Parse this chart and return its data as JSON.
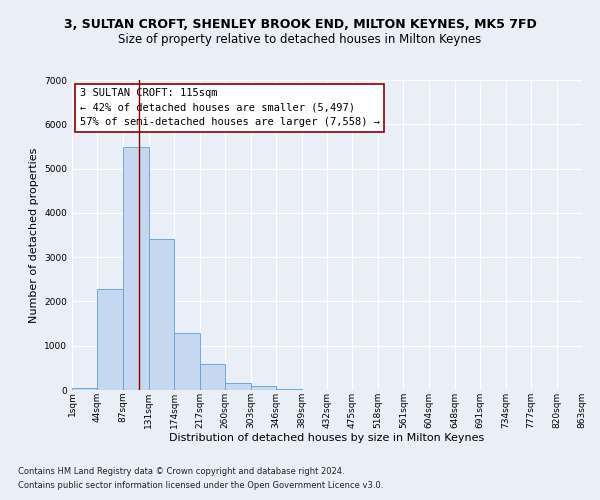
{
  "title": "3, SULTAN CROFT, SHENLEY BROOK END, MILTON KEYNES, MK5 7FD",
  "subtitle": "Size of property relative to detached houses in Milton Keynes",
  "xlabel": "Distribution of detached houses by size in Milton Keynes",
  "ylabel": "Number of detached properties",
  "footnote1": "Contains HM Land Registry data © Crown copyright and database right 2024.",
  "footnote2": "Contains public sector information licensed under the Open Government Licence v3.0.",
  "bar_color": "#c5d8f0",
  "bar_edge_color": "#5a9fd4",
  "vline_color": "#8b0000",
  "vline_value": 115,
  "annotation_text": "3 SULTAN CROFT: 115sqm\n← 42% of detached houses are smaller (5,497)\n57% of semi-detached houses are larger (7,558) →",
  "annotation_box_color": "white",
  "annotation_box_edge": "#8b0000",
  "bin_edges": [
    1,
    44,
    87,
    131,
    174,
    217,
    260,
    303,
    346,
    389,
    432,
    475,
    518,
    561,
    604,
    648,
    691,
    734,
    777,
    820,
    863
  ],
  "bar_heights": [
    50,
    2280,
    5480,
    3400,
    1280,
    580,
    160,
    85,
    25,
    10,
    5,
    2,
    1,
    0,
    0,
    0,
    0,
    0,
    0,
    0
  ],
  "ylim": [
    0,
    7000
  ],
  "yticks": [
    0,
    1000,
    2000,
    3000,
    4000,
    5000,
    6000,
    7000
  ],
  "bg_color": "#eaeff7",
  "plot_bg_color": "#eaeff7",
  "grid_color": "white",
  "title_fontsize": 9,
  "subtitle_fontsize": 8.5,
  "label_fontsize": 8,
  "tick_fontsize": 6.5,
  "annot_fontsize": 7.5,
  "footnote_fontsize": 6
}
